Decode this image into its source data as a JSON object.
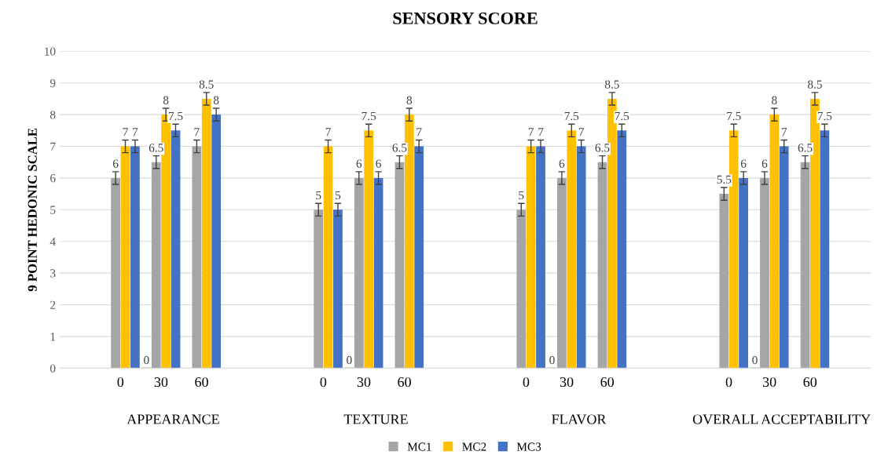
{
  "chart_data": {
    "type": "bar",
    "title": "SENSORY SCORE",
    "ylabel": "9 POINT HEDONIC SCALE",
    "categories": [
      null,
      "0",
      "30",
      "60",
      null,
      null,
      "0",
      "30",
      "60",
      null,
      null,
      "0",
      "30",
      "60",
      null,
      null,
      "0",
      "30",
      "60",
      null
    ],
    "series": [
      {
        "color": "#a5a5a5",
        "values": [
          null,
          null,
          0,
          null,
          null,
          null,
          null,
          0,
          null,
          null,
          null,
          null,
          0,
          null,
          null,
          null,
          null,
          0,
          null,
          null
        ]
      },
      {
        "name": "MC1",
        "color": "#a5a5a5",
        "values": [
          null,
          6,
          6.5,
          7,
          null,
          null,
          5,
          6,
          6.5,
          null,
          null,
          5,
          6,
          6.5,
          null,
          null,
          5.5,
          6,
          6.5,
          null
        ],
        "errors": [
          null,
          0.2,
          0.2,
          0.2,
          null,
          null,
          0.2,
          0.2,
          0.2,
          null,
          null,
          0.2,
          0.2,
          0.2,
          null,
          null,
          0.2,
          0.2,
          0.2,
          null
        ]
      },
      {
        "name": "MC2",
        "color": "#ffc000",
        "values": [
          null,
          7,
          8,
          8.5,
          null,
          null,
          7,
          7.5,
          8,
          null,
          null,
          7,
          7.5,
          8.5,
          null,
          null,
          7.5,
          8,
          8.5,
          null
        ],
        "errors": [
          null,
          0.2,
          0.2,
          0.2,
          null,
          null,
          0.2,
          0.2,
          0.2,
          null,
          null,
          0.2,
          0.2,
          0.2,
          null,
          null,
          0.2,
          0.2,
          0.2,
          null
        ]
      },
      {
        "name": "MC3",
        "color": "#4472c4",
        "values": [
          null,
          7,
          7.5,
          8,
          null,
          null,
          5,
          6,
          7,
          null,
          null,
          7,
          7,
          7.5,
          null,
          null,
          6,
          7,
          7.5,
          null
        ],
        "errors": [
          null,
          0.2,
          0.2,
          0.2,
          null,
          null,
          0.2,
          0.2,
          0.2,
          null,
          null,
          0.2,
          0.2,
          0.2,
          null,
          null,
          0.2,
          0.2,
          0.2,
          null
        ]
      }
    ],
    "annotations": [
      "APPEARANCE",
      "TEXTURE",
      "FLAVOR",
      "OVERALL ACCEPTABILITY"
    ],
    "ylim": [
      0,
      10
    ],
    "yticks": [
      0,
      1,
      2,
      3,
      4,
      5,
      6,
      7,
      8,
      9,
      10
    ],
    "grid": "y",
    "legend": "bottom",
    "data_labels": true
  }
}
